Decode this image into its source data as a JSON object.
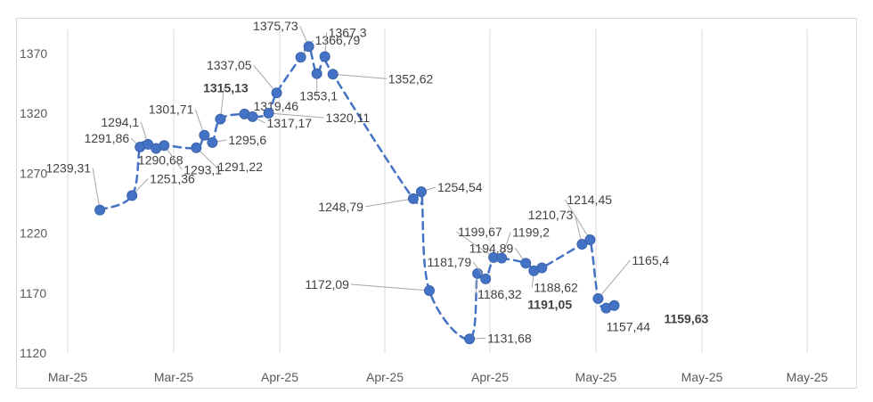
{
  "chart_data": {
    "type": "line",
    "title": "",
    "xlabel": "",
    "ylabel": "",
    "ylim": [
      1120,
      1390
    ],
    "y_ticks": [
      1120,
      1170,
      1220,
      1270,
      1320,
      1370
    ],
    "x_tick_labels": [
      "Mar-25",
      "Mar-25",
      "Apr-25",
      "Apr-25",
      "Apr-25",
      "May-25",
      "May-25",
      "May-25"
    ],
    "grid": "vertical",
    "line_style": "dashed",
    "series_color": "#4472c4",
    "points": [
      {
        "x": "2025-02-28",
        "y": 1239.31,
        "label": "1239,31"
      },
      {
        "x": "2025-03-04",
        "y": 1251.36,
        "label": "1251,36"
      },
      {
        "x": "2025-03-05",
        "y": 1291.86,
        "label": "1291,86"
      },
      {
        "x": "2025-03-06",
        "y": 1294.1,
        "label": "1294,1"
      },
      {
        "x": "2025-03-07",
        "y": 1290.68,
        "label": "1290,68"
      },
      {
        "x": "2025-03-08",
        "y": 1293.1,
        "label": "1293,1"
      },
      {
        "x": "2025-03-12",
        "y": 1291.22,
        "label": "1291,22"
      },
      {
        "x": "2025-03-13",
        "y": 1301.71,
        "label": "1301,71"
      },
      {
        "x": "2025-03-14",
        "y": 1295.6,
        "label": "1295,6"
      },
      {
        "x": "2025-03-15",
        "y": 1315.13,
        "label": "1315,13"
      },
      {
        "x": "2025-03-18",
        "y": 1319.46,
        "label": "1319,46"
      },
      {
        "x": "2025-03-19",
        "y": 1317.17,
        "label": "1317,17"
      },
      {
        "x": "2025-03-21",
        "y": 1320.11,
        "label": "1320,11"
      },
      {
        "x": "2025-03-22",
        "y": 1337.05,
        "label": "1337,05"
      },
      {
        "x": "2025-03-25",
        "y": 1366.79,
        "label": "1366,79"
      },
      {
        "x": "2025-03-26",
        "y": 1375.73,
        "label": "1375,73"
      },
      {
        "x": "2025-03-27",
        "y": 1353.1,
        "label": "1353,1"
      },
      {
        "x": "2025-03-28",
        "y": 1367.3,
        "label": "1367,3"
      },
      {
        "x": "2025-03-29",
        "y": 1352.62,
        "label": "1352,62"
      },
      {
        "x": "2025-04-08",
        "y": 1248.79,
        "label": "1248,79"
      },
      {
        "x": "2025-04-09",
        "y": 1254.54,
        "label": "1254,54"
      },
      {
        "x": "2025-04-10",
        "y": 1172.09,
        "label": "1172,09"
      },
      {
        "x": "2025-04-15",
        "y": 1131.68,
        "label": "1131,68"
      },
      {
        "x": "2025-04-16",
        "y": 1186.32,
        "label": "1186,32"
      },
      {
        "x": "2025-04-17",
        "y": 1181.79,
        "label": "1181,79"
      },
      {
        "x": "2025-04-18",
        "y": 1199.67,
        "label": "1199,67"
      },
      {
        "x": "2025-04-19",
        "y": 1199.2,
        "label": "1199,2"
      },
      {
        "x": "2025-04-22",
        "y": 1194.89,
        "label": "1194,89"
      },
      {
        "x": "2025-04-23",
        "y": 1188.62,
        "label": "1188,62"
      },
      {
        "x": "2025-04-24",
        "y": 1191.05,
        "label": "1191,05"
      },
      {
        "x": "2025-04-29",
        "y": 1210.73,
        "label": "1210,73"
      },
      {
        "x": "2025-04-30",
        "y": 1214.45,
        "label": "1214,45"
      },
      {
        "x": "2025-05-01",
        "y": 1165.4,
        "label": "1165,4"
      },
      {
        "x": "2025-05-02",
        "y": 1157.44,
        "label": "1157,44"
      },
      {
        "x": "2025-05-03",
        "y": 1159.63,
        "label": "1159,63"
      }
    ],
    "bold_labels": [
      "1315,13",
      "1191,05"
    ],
    "highlight_label": "1159,63"
  }
}
